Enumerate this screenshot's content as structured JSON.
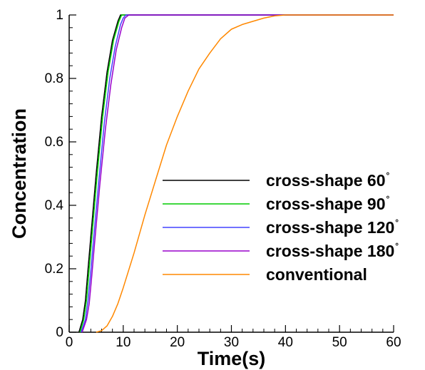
{
  "chart_data": {
    "type": "line",
    "title": "",
    "xlabel": "Time(s)",
    "ylabel": "Concentration",
    "xlim": [
      0,
      60
    ],
    "ylim": [
      0,
      1
    ],
    "xticks": [
      "0",
      "10",
      "20",
      "30",
      "40",
      "50",
      "60"
    ],
    "yticks": [
      "0",
      "0.2",
      "0.4",
      "0.6",
      "0.8",
      "1"
    ],
    "grid": false,
    "legend_position": "center-right",
    "series": [
      {
        "name": "cross-shape 60",
        "name_suffix": "°",
        "color": "#000000",
        "x": [
          1.8,
          2.5,
          3,
          3.5,
          4,
          5,
          6,
          7,
          8,
          9,
          9.5,
          10,
          20,
          40,
          60
        ],
        "y": [
          0,
          0.04,
          0.1,
          0.2,
          0.3,
          0.5,
          0.68,
          0.82,
          0.92,
          0.98,
          1.0,
          1.0,
          1.0,
          1.0,
          1.0
        ]
      },
      {
        "name": "cross-shape 90",
        "name_suffix": "°",
        "color": "#00cc00",
        "x": [
          2,
          2.7,
          3.2,
          3.7,
          4.2,
          5.2,
          6.2,
          7.2,
          8.2,
          9.2,
          9.7,
          10.2,
          20,
          40,
          60
        ],
        "y": [
          0,
          0.04,
          0.1,
          0.2,
          0.3,
          0.5,
          0.68,
          0.82,
          0.92,
          0.98,
          1.0,
          1.0,
          1.0,
          1.0,
          1.0
        ]
      },
      {
        "name": "cross-shape 120",
        "name_suffix": "°",
        "color": "#4444ff",
        "x": [
          2.2,
          3,
          3.5,
          4,
          4.5,
          5.5,
          6.5,
          7.5,
          8.5,
          9.5,
          10,
          10.5,
          20,
          40,
          60
        ],
        "y": [
          0,
          0.04,
          0.1,
          0.19,
          0.29,
          0.48,
          0.66,
          0.8,
          0.9,
          0.97,
          0.99,
          1.0,
          1.0,
          1.0,
          1.0
        ]
      },
      {
        "name": "cross-shape 180",
        "name_suffix": "°",
        "color": "#9900cc",
        "x": [
          2.4,
          3.2,
          3.7,
          4.2,
          4.7,
          5.7,
          6.7,
          7.7,
          8.7,
          9.7,
          10.3,
          11,
          20,
          40,
          60
        ],
        "y": [
          0,
          0.04,
          0.09,
          0.18,
          0.28,
          0.47,
          0.64,
          0.78,
          0.89,
          0.96,
          0.99,
          1.0,
          1.0,
          1.0,
          1.0
        ]
      },
      {
        "name": "conventional",
        "name_suffix": "",
        "color": "#ff8800",
        "x": [
          5,
          6,
          7,
          8,
          9,
          10,
          12,
          14,
          16,
          18,
          20,
          22,
          24,
          26,
          28,
          30,
          32,
          34,
          36,
          38,
          40,
          45,
          50,
          55,
          60
        ],
        "y": [
          0,
          0.005,
          0.02,
          0.05,
          0.09,
          0.14,
          0.25,
          0.37,
          0.48,
          0.59,
          0.68,
          0.76,
          0.83,
          0.88,
          0.925,
          0.955,
          0.97,
          0.98,
          0.99,
          0.997,
          1.0,
          1.0,
          1.0,
          1.0,
          1.0
        ]
      }
    ]
  }
}
